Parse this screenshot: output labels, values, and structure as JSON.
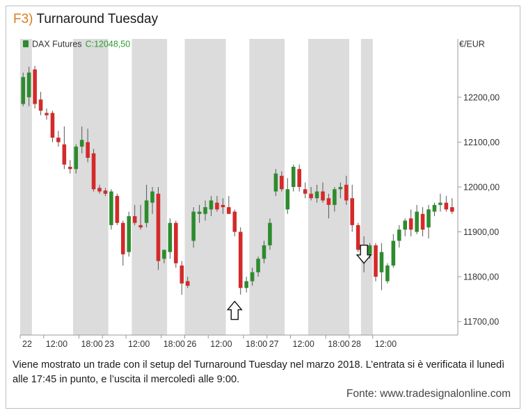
{
  "figure": {
    "label": "F3)",
    "title": "Turnaround Tuesday",
    "caption": "Viene mostrato un trade con il setup del Turnaround Tuesday nel marzo 2018. L’entrata si è verificata il lunedì alle 17:45 in punto, e l’uscita il mercoledì alle 9:00.",
    "source": "Fonte: www.tradesignalonline.com"
  },
  "colors": {
    "up": "#2e8b2e",
    "down": "#d42a2a",
    "session_shade": "#dcdcdc",
    "last_price_text": "#2e9a2e",
    "title_accent": "#e07a1f"
  },
  "chart_data": {
    "type": "candlestick",
    "instrument": "DAX Futures",
    "last_price_label": "C:12048,50",
    "currency_label": "€/EUR",
    "ylim": [
      11670,
      12330
    ],
    "y_ticks": [
      11700,
      11800,
      11900,
      12000,
      12100,
      12200
    ],
    "y_tick_labels": [
      "11700,00",
      "11800,00",
      "11900,00",
      "12000,00",
      "12100,00",
      "12200,00"
    ],
    "x_ticks": [
      {
        "label": "22",
        "bar": 0
      },
      {
        "label": "12:00",
        "bar": 4
      },
      {
        "label": "18:00",
        "bar": 10
      },
      {
        "label": "23",
        "bar": 14
      },
      {
        "label": "12:00",
        "bar": 18
      },
      {
        "label": "18:00",
        "bar": 24
      },
      {
        "label": "26",
        "bar": 28
      },
      {
        "label": "12:00",
        "bar": 32
      },
      {
        "label": "18:00",
        "bar": 38
      },
      {
        "label": "27",
        "bar": 42
      },
      {
        "label": "12:00",
        "bar": 46
      },
      {
        "label": "18:00",
        "bar": 52
      },
      {
        "label": "28",
        "bar": 56
      },
      {
        "label": "12:00",
        "bar": 60
      }
    ],
    "session_shades": [
      [
        0,
        1
      ],
      [
        9,
        14
      ],
      [
        19,
        24
      ],
      [
        28,
        34
      ],
      [
        39,
        44
      ],
      [
        49,
        55
      ],
      [
        58,
        59
      ]
    ],
    "grid": false,
    "legend": "top-left",
    "markers": [
      {
        "type": "entry",
        "direction": "up",
        "bar": 36,
        "price": 11745
      },
      {
        "type": "exit",
        "direction": "down",
        "bar": 58,
        "price": 11830
      }
    ],
    "candles": [
      {
        "o": 12185,
        "h": 12255,
        "l": 12180,
        "c": 12245
      },
      {
        "o": 12200,
        "h": 12268,
        "l": 12180,
        "c": 12255
      },
      {
        "o": 12262,
        "h": 12270,
        "l": 12175,
        "c": 12185
      },
      {
        "o": 12195,
        "h": 12212,
        "l": 12160,
        "c": 12170
      },
      {
        "o": 12165,
        "h": 12175,
        "l": 12150,
        "c": 12160
      },
      {
        "o": 12165,
        "h": 12170,
        "l": 12100,
        "c": 12110
      },
      {
        "o": 12110,
        "h": 12125,
        "l": 12090,
        "c": 12100
      },
      {
        "o": 12095,
        "h": 12135,
        "l": 12040,
        "c": 12050
      },
      {
        "o": 12045,
        "h": 12060,
        "l": 12030,
        "c": 12040
      },
      {
        "o": 12040,
        "h": 12095,
        "l": 12030,
        "c": 12090
      },
      {
        "o": 12090,
        "h": 12135,
        "l": 12075,
        "c": 12105
      },
      {
        "o": 12100,
        "h": 12130,
        "l": 12055,
        "c": 12065
      },
      {
        "o": 12075,
        "h": 12085,
        "l": 11990,
        "c": 11995
      },
      {
        "o": 11998,
        "h": 12005,
        "l": 11985,
        "c": 11990
      },
      {
        "o": 11992,
        "h": 11998,
        "l": 11980,
        "c": 11985
      },
      {
        "o": 11915,
        "h": 11995,
        "l": 11905,
        "c": 11990
      },
      {
        "o": 11980,
        "h": 11985,
        "l": 11915,
        "c": 11920
      },
      {
        "o": 11920,
        "h": 11925,
        "l": 11825,
        "c": 11850
      },
      {
        "o": 11855,
        "h": 11945,
        "l": 11845,
        "c": 11935
      },
      {
        "o": 11935,
        "h": 11960,
        "l": 11915,
        "c": 11920
      },
      {
        "o": 11915,
        "h": 11960,
        "l": 11905,
        "c": 11910
      },
      {
        "o": 11920,
        "h": 12005,
        "l": 11910,
        "c": 11970
      },
      {
        "o": 11965,
        "h": 12000,
        "l": 11940,
        "c": 11990
      },
      {
        "o": 11985,
        "h": 12000,
        "l": 11815,
        "c": 11835
      },
      {
        "o": 11840,
        "h": 11860,
        "l": 11830,
        "c": 11860
      },
      {
        "o": 11855,
        "h": 11930,
        "l": 11840,
        "c": 11920
      },
      {
        "o": 11920,
        "h": 11925,
        "l": 11820,
        "c": 11830
      },
      {
        "o": 11825,
        "h": 11835,
        "l": 11760,
        "c": 11785
      },
      {
        "o": 11790,
        "h": 11800,
        "l": 11775,
        "c": 11780
      },
      {
        "o": 11880,
        "h": 11955,
        "l": 11865,
        "c": 11945
      },
      {
        "o": 11940,
        "h": 11960,
        "l": 11920,
        "c": 11945
      },
      {
        "o": 11940,
        "h": 11970,
        "l": 11925,
        "c": 11955
      },
      {
        "o": 11950,
        "h": 11980,
        "l": 11935,
        "c": 11970
      },
      {
        "o": 11965,
        "h": 11980,
        "l": 11945,
        "c": 11950
      },
      {
        "o": 11960,
        "h": 11975,
        "l": 11940,
        "c": 11955
      },
      {
        "o": 11955,
        "h": 11980,
        "l": 11940,
        "c": 11940
      },
      {
        "o": 11945,
        "h": 11950,
        "l": 11890,
        "c": 11900
      },
      {
        "o": 11900,
        "h": 11910,
        "l": 11760,
        "c": 11775
      },
      {
        "o": 11775,
        "h": 11800,
        "l": 11765,
        "c": 11790
      },
      {
        "o": 11790,
        "h": 11820,
        "l": 11780,
        "c": 11810
      },
      {
        "o": 11810,
        "h": 11845,
        "l": 11800,
        "c": 11840
      },
      {
        "o": 11840,
        "h": 11880,
        "l": 11830,
        "c": 11870
      },
      {
        "o": 11870,
        "h": 11930,
        "l": 11860,
        "c": 11920
      },
      {
        "o": 11990,
        "h": 12040,
        "l": 11980,
        "c": 12030
      },
      {
        "o": 12025,
        "h": 12035,
        "l": 11990,
        "c": 11995
      },
      {
        "o": 11950,
        "h": 12020,
        "l": 11940,
        "c": 11995
      },
      {
        "o": 12000,
        "h": 12050,
        "l": 11990,
        "c": 12045
      },
      {
        "o": 12040,
        "h": 12050,
        "l": 11990,
        "c": 12000
      },
      {
        "o": 11995,
        "h": 12010,
        "l": 11975,
        "c": 11985
      },
      {
        "o": 11985,
        "h": 12000,
        "l": 11970,
        "c": 11975
      },
      {
        "o": 11975,
        "h": 12005,
        "l": 11965,
        "c": 11990
      },
      {
        "o": 11990,
        "h": 12010,
        "l": 11965,
        "c": 11970
      },
      {
        "o": 11975,
        "h": 11985,
        "l": 11930,
        "c": 11960
      },
      {
        "o": 11960,
        "h": 12000,
        "l": 11945,
        "c": 11995
      },
      {
        "o": 11995,
        "h": 12010,
        "l": 11975,
        "c": 12000
      },
      {
        "o": 12005,
        "h": 12025,
        "l": 11960,
        "c": 11970
      },
      {
        "o": 11975,
        "h": 12005,
        "l": 11900,
        "c": 11915
      },
      {
        "o": 11915,
        "h": 11920,
        "l": 11855,
        "c": 11860
      },
      {
        "o": 11865,
        "h": 11890,
        "l": 11810,
        "c": 11850
      },
      {
        "o": 11850,
        "h": 11875,
        "l": 11840,
        "c": 11870
      },
      {
        "o": 11870,
        "h": 11875,
        "l": 11790,
        "c": 11800
      },
      {
        "o": 11810,
        "h": 11875,
        "l": 11770,
        "c": 11855
      },
      {
        "o": 11790,
        "h": 11830,
        "l": 11785,
        "c": 11825
      },
      {
        "o": 11825,
        "h": 11895,
        "l": 11820,
        "c": 11880
      },
      {
        "o": 11880,
        "h": 11915,
        "l": 11865,
        "c": 11905
      },
      {
        "o": 11905,
        "h": 11930,
        "l": 11890,
        "c": 11925
      },
      {
        "o": 11930,
        "h": 11950,
        "l": 11890,
        "c": 11905
      },
      {
        "o": 11900,
        "h": 11960,
        "l": 11895,
        "c": 11945
      },
      {
        "o": 11940,
        "h": 11955,
        "l": 11890,
        "c": 11905
      },
      {
        "o": 11910,
        "h": 11960,
        "l": 11885,
        "c": 11950
      },
      {
        "o": 11945,
        "h": 11965,
        "l": 11935,
        "c": 11960
      },
      {
        "o": 11960,
        "h": 11985,
        "l": 11945,
        "c": 11965
      },
      {
        "o": 11965,
        "h": 11980,
        "l": 11945,
        "c": 11950
      },
      {
        "o": 11955,
        "h": 11975,
        "l": 11940,
        "c": 11945
      }
    ]
  }
}
